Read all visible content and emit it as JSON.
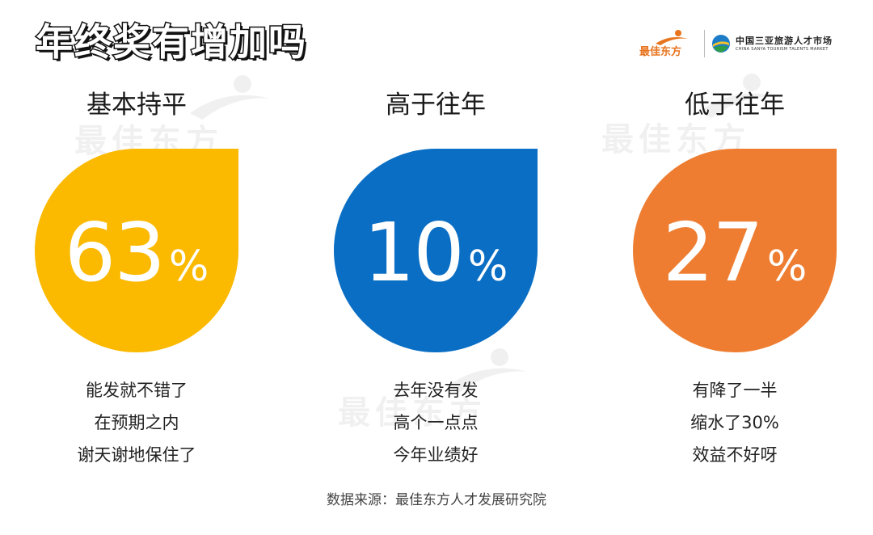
{
  "title": "年终奖有增加吗",
  "logos": {
    "brand": "最佳东方",
    "partner_cn": "中国三亚旅游人才市场",
    "partner_en": "CHINA SANYA TOURISM TALENTS MARKET"
  },
  "watermark_text": "最佳东方",
  "colors": {
    "yellow": "#FBB900",
    "blue": "#0A6EC4",
    "orange": "#EE7D31",
    "brand_orange": "#E8741E"
  },
  "chart_data": {
    "type": "pie",
    "title": "年终奖有增加吗",
    "categories": [
      "基本持平",
      "高于往年",
      "低于往年"
    ],
    "values": [
      63,
      10,
      27
    ],
    "unit": "%",
    "annotations": [
      [
        "能发就不错了",
        "在预期之内",
        "谢天谢地保住了"
      ],
      [
        "去年没有发",
        "高个一点点",
        "今年业绩好"
      ],
      [
        "有降了一半",
        "缩水了30%",
        "效益不好呀"
      ]
    ],
    "source": "数据来源：最佳东方人才发展研究院"
  },
  "columns": [
    {
      "label": "基本持平",
      "value": "63",
      "unit": "%",
      "color_key": "yellow",
      "reasons": [
        "能发就不错了",
        "在预期之内",
        "谢天谢地保住了"
      ]
    },
    {
      "label": "高于往年",
      "value": "10",
      "unit": "%",
      "color_key": "blue",
      "reasons": [
        "去年没有发",
        "高个一点点",
        "今年业绩好"
      ]
    },
    {
      "label": "低于往年",
      "value": "27",
      "unit": "%",
      "color_key": "orange",
      "reasons": [
        "有降了一半",
        "缩水了30%",
        "效益不好呀"
      ]
    }
  ],
  "source": "数据来源：最佳东方人才发展研究院"
}
